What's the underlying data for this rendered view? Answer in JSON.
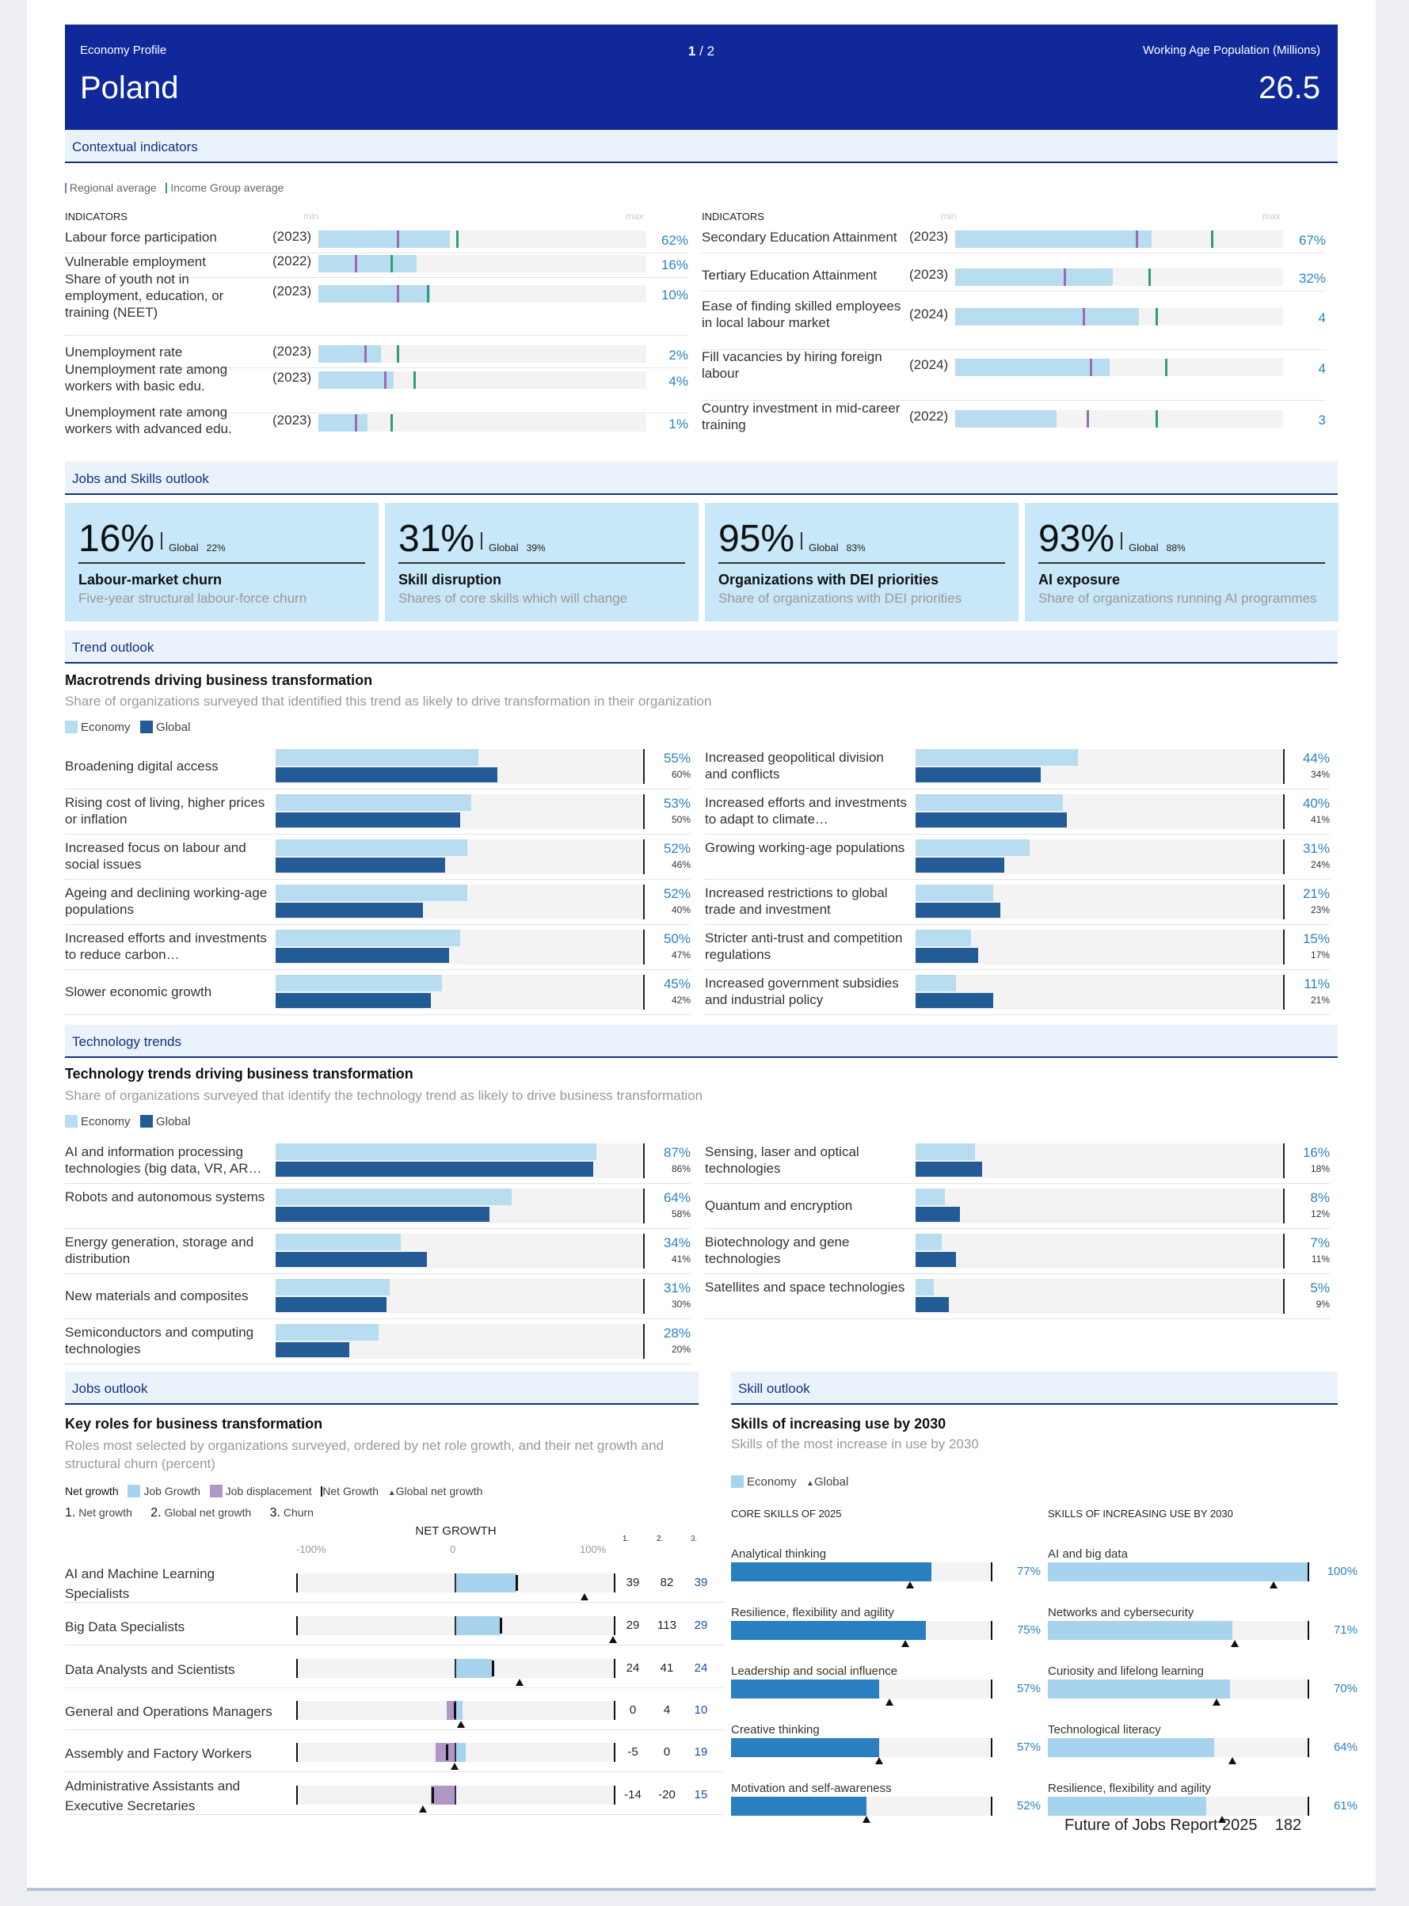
{
  "header": {
    "profile_label": "Economy Profile",
    "page_current": "1",
    "page_sep": "/",
    "page_total": "2",
    "country": "Poland",
    "population_label": "Working Age Population (Millions)",
    "population_value": "26.5"
  },
  "sections": {
    "contextual": "Contextual indicators",
    "jobs_skills": "Jobs and Skills outlook",
    "trend": "Trend outlook",
    "technology": "Technology trends",
    "jobs": "Jobs outlook",
    "skill": "Skill outlook"
  },
  "context_legend": {
    "regional": "Regional average",
    "income": "Income Group average",
    "colors": {
      "regional": "#9b6ab3",
      "income": "#2f9e7c"
    }
  },
  "context_headers": {
    "indicators": "INDICATORS",
    "min": "min",
    "max": "max"
  },
  "context_left": [
    {
      "name": "Labour force participation",
      "year": "(2023)",
      "value": "62%",
      "fill": 0.4,
      "regional": 0.24,
      "income": 0.42
    },
    {
      "name": "Vulnerable employment",
      "year": "(2022)",
      "value": "16%",
      "fill": 0.3,
      "regional": 0.11,
      "income": 0.22
    },
    {
      "name": "Share of youth not in employment, education, or training (NEET)",
      "year": "(2023)",
      "value": "10%",
      "fill": 0.34,
      "regional": 0.24,
      "income": 0.33
    },
    {
      "name": "Unemployment rate",
      "year": "(2023)",
      "value": "2%",
      "fill": 0.19,
      "regional": 0.14,
      "income": 0.24
    },
    {
      "name": "Unemployment rate among workers with basic edu.",
      "year": "(2023)",
      "value": "4%",
      "fill": 0.23,
      "regional": 0.2,
      "income": 0.29
    },
    {
      "name": "Unemployment rate among workers with advanced edu.",
      "year": "(2023)",
      "value": "1%",
      "fill": 0.15,
      "regional": 0.11,
      "income": 0.22
    }
  ],
  "context_right": [
    {
      "name": "Secondary Education Attainment",
      "year": "(2023)",
      "value": "67%",
      "fill": 0.6,
      "regional": 0.55,
      "income": 0.78
    },
    {
      "name": "Tertiary Education Attainment",
      "year": "(2023)",
      "value": "32%",
      "fill": 0.48,
      "regional": 0.33,
      "income": 0.59
    },
    {
      "name": "Ease of finding skilled employees in local labour market",
      "year": "(2024)",
      "value": "4",
      "fill": 0.56,
      "regional": 0.39,
      "income": 0.61
    },
    {
      "name": "Fill vacancies by hiring foreign labour",
      "year": "(2024)",
      "value": "4",
      "fill": 0.47,
      "regional": 0.41,
      "income": 0.64
    },
    {
      "name": "Country investment in mid-career training",
      "year": "(2022)",
      "value": "3",
      "fill": 0.31,
      "regional": 0.4,
      "income": 0.61
    }
  ],
  "cards": [
    {
      "value": "16%",
      "global_label": "Global",
      "global_value": "22%",
      "title": "Labour-market churn",
      "subtitle": "Five-year structural labour-force churn"
    },
    {
      "value": "31%",
      "global_label": "Global",
      "global_value": "39%",
      "title": "Skill disruption",
      "subtitle": "Shares of core skills which will change"
    },
    {
      "value": "95%",
      "global_label": "Global",
      "global_value": "83%",
      "title": "Organizations with DEI priorities",
      "subtitle": "Share of organizations with DEI priorities"
    },
    {
      "value": "93%",
      "global_label": "Global",
      "global_value": "88%",
      "title": "AI exposure",
      "subtitle": "Share of organizations running AI programmes"
    }
  ],
  "macro": {
    "title": "Macrotrends driving business transformation",
    "subtitle": "Share of organizations surveyed that identified this trend as likely to drive transformation in their organization",
    "legend_economy": "Economy",
    "legend_global": "Global",
    "colors": {
      "economy": "#b8dcf0",
      "global": "#225b96"
    },
    "left": [
      {
        "name": "Broadening digital access",
        "economy": 55,
        "global": 60,
        "economy_label": "55%",
        "global_label": "60%"
      },
      {
        "name": "Rising cost of living, higher prices or inflation",
        "economy": 53,
        "global": 50,
        "economy_label": "53%",
        "global_label": "50%"
      },
      {
        "name": "Increased focus on labour and social issues",
        "economy": 52,
        "global": 46,
        "economy_label": "52%",
        "global_label": "46%"
      },
      {
        "name": "Ageing and declining working-age populations",
        "economy": 52,
        "global": 40,
        "economy_label": "52%",
        "global_label": "40%"
      },
      {
        "name": "Increased efforts and investments to reduce carbon…",
        "economy": 50,
        "global": 47,
        "economy_label": "50%",
        "global_label": "47%"
      },
      {
        "name": "Slower economic growth",
        "economy": 45,
        "global": 42,
        "economy_label": "45%",
        "global_label": "42%"
      }
    ],
    "right": [
      {
        "name": "Increased geopolitical division and conflicts",
        "economy": 44,
        "global": 34,
        "economy_label": "44%",
        "global_label": "34%"
      },
      {
        "name": "Increased efforts and investments to adapt to climate…",
        "economy": 40,
        "global": 41,
        "economy_label": "40%",
        "global_label": "41%"
      },
      {
        "name": "Growing working-age populations",
        "economy": 31,
        "global": 24,
        "economy_label": "31%",
        "global_label": "24%"
      },
      {
        "name": "Increased restrictions to global trade and investment",
        "economy": 21,
        "global": 23,
        "economy_label": "21%",
        "global_label": "23%"
      },
      {
        "name": "Stricter anti-trust and competition regulations",
        "economy": 15,
        "global": 17,
        "economy_label": "15%",
        "global_label": "17%"
      },
      {
        "name": "Increased government subsidies and industrial policy",
        "economy": 11,
        "global": 21,
        "economy_label": "11%",
        "global_label": "21%"
      }
    ]
  },
  "tech": {
    "title": "Technology trends driving business transformation",
    "subtitle": "Share of organizations surveyed that identify the technology trend as likely to drive business transformation",
    "legend_economy": "Economy",
    "legend_global": "Global",
    "left": [
      {
        "name": "AI and information processing technologies (big data, VR, AR…",
        "economy": 87,
        "global": 86,
        "economy_label": "87%",
        "global_label": "86%"
      },
      {
        "name": "Robots and autonomous systems",
        "economy": 64,
        "global": 58,
        "economy_label": "64%",
        "global_label": "58%"
      },
      {
        "name": "Energy generation, storage and distribution",
        "economy": 34,
        "global": 41,
        "economy_label": "34%",
        "global_label": "41%"
      },
      {
        "name": "New materials and composites",
        "economy": 31,
        "global": 30,
        "economy_label": "31%",
        "global_label": "30%"
      },
      {
        "name": "Semiconductors and computing technologies",
        "economy": 28,
        "global": 20,
        "economy_label": "28%",
        "global_label": "20%"
      }
    ],
    "right": [
      {
        "name": "Sensing, laser and optical technologies",
        "economy": 16,
        "global": 18,
        "economy_label": "16%",
        "global_label": "18%"
      },
      {
        "name": "Quantum and encryption",
        "economy": 8,
        "global": 12,
        "economy_label": "8%",
        "global_label": "12%"
      },
      {
        "name": "Biotechnology and gene technologies",
        "economy": 7,
        "global": 11,
        "economy_label": "7%",
        "global_label": "11%"
      },
      {
        "name": "Satellites and space technologies",
        "economy": 5,
        "global": 9,
        "economy_label": "5%",
        "global_label": "9%"
      }
    ]
  },
  "jobs": {
    "title": "Key roles for business transformation",
    "subtitle": "Roles most selected by organizations surveyed, ordered by net role growth, and their net growth and structural churn (percent)",
    "legend": {
      "net_growth": "Net growth",
      "job_growth": "Job Growth",
      "job_displacement": "Job displacement",
      "net_growth_marker": "Net Growth",
      "global_net_growth": "Global net growth"
    },
    "key": {
      "n1": "1.",
      "l1": "Net growth",
      "n2": "2.",
      "l2": "Global net growth",
      "n3": "3.",
      "l3": "Churn"
    },
    "axis": {
      "title": "NET GROWTH",
      "min": "-100%",
      "mid": "0",
      "max": "100%",
      "c1": "1.",
      "c2": "2.",
      "c3": "3."
    },
    "colors": {
      "growth": "#a7d3ee",
      "displacement": "#b197c8"
    },
    "roles": [
      {
        "name": "AI and Machine Learning Specialists",
        "growth": 39,
        "displacement": 0,
        "net": 39,
        "global": 82,
        "net_label": "39",
        "global_label": "82",
        "churn_label": "39"
      },
      {
        "name": "Big Data Specialists",
        "growth": 29,
        "displacement": 0,
        "net": 29,
        "global": 113,
        "net_label": "29",
        "global_label": "113",
        "churn_label": "29"
      },
      {
        "name": "Data Analysts and Scientists",
        "growth": 24,
        "displacement": 0,
        "net": 24,
        "global": 41,
        "net_label": "24",
        "global_label": "41",
        "churn_label": "24"
      },
      {
        "name": "General and Operations Managers",
        "growth": 5,
        "displacement": 5,
        "net": 0,
        "global": 4,
        "net_label": "0",
        "global_label": "4",
        "churn_label": "10"
      },
      {
        "name": "Assembly and Factory Workers",
        "growth": 7,
        "displacement": 12,
        "net": -5,
        "global": 0,
        "net_label": "-5",
        "global_label": "0",
        "churn_label": "19"
      },
      {
        "name": "Administrative Assistants and Executive Secretaries",
        "growth": 0,
        "displacement": 15,
        "net": -14,
        "global": -20,
        "net_label": "-14",
        "global_label": "-20",
        "churn_label": "15"
      }
    ]
  },
  "skills": {
    "title": "Skills of increasing use by 2030",
    "subtitle": "Skills of the most increase in use by 2030",
    "legend_economy": "Economy",
    "legend_global": "Global",
    "core_header": "CORE SKILLS OF 2025",
    "increasing_header": "SKILLS OF INCREASING USE BY 2030",
    "colors": {
      "core": "#2a7fc1",
      "increasing": "#a7d3ee"
    },
    "core": [
      {
        "name": "Analytical thinking",
        "value": 77,
        "label": "77%",
        "global": 69
      },
      {
        "name": "Resilience, flexibility and agility",
        "value": 75,
        "label": "75%",
        "global": 67
      },
      {
        "name": "Leadership and social influence",
        "value": 57,
        "label": "57%",
        "global": 61
      },
      {
        "name": "Creative thinking",
        "value": 57,
        "label": "57%",
        "global": 57
      },
      {
        "name": "Motivation and self-awareness",
        "value": 52,
        "label": "52%",
        "global": 52
      }
    ],
    "increasing": [
      {
        "name": "AI and big data",
        "value": 100,
        "label": "100%",
        "global": 87
      },
      {
        "name": "Networks and cybersecurity",
        "value": 71,
        "label": "71%",
        "global": 72
      },
      {
        "name": "Curiosity and lifelong learning",
        "value": 70,
        "label": "70%",
        "global": 65
      },
      {
        "name": "Technological literacy",
        "value": 64,
        "label": "64%",
        "global": 71
      },
      {
        "name": "Resilience, flexibility and agility",
        "value": 61,
        "label": "61%",
        "global": 67
      }
    ]
  },
  "footer": {
    "report": "Future of Jobs Report 2025",
    "page": "182"
  }
}
